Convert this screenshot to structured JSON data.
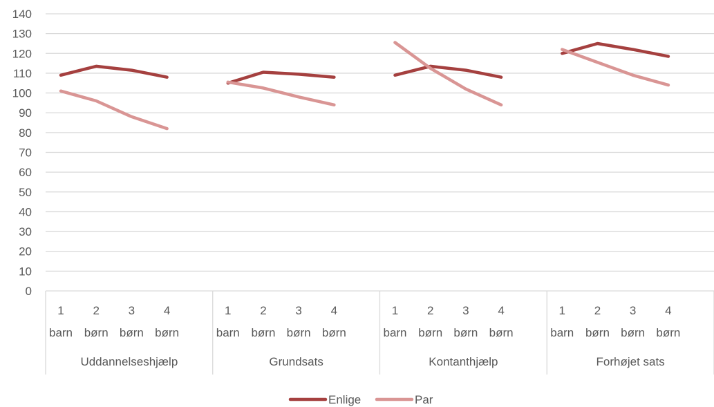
{
  "chart_data": {
    "type": "line",
    "title": "",
    "xlabel": "",
    "ylabel": "",
    "ylim": [
      0,
      140
    ],
    "yticks": [
      0,
      10,
      20,
      30,
      40,
      50,
      60,
      70,
      80,
      90,
      100,
      110,
      120,
      130,
      140
    ],
    "grid": true,
    "legend_position": "bottom",
    "groups": [
      {
        "name": "Uddannelseshjælp",
        "categories": [
          {
            "line1": "1",
            "line2": "barn"
          },
          {
            "line1": "2",
            "line2": "børn"
          },
          {
            "line1": "3",
            "line2": "børn"
          },
          {
            "line1": "4",
            "line2": "børn"
          }
        ]
      },
      {
        "name": "Grundsats",
        "categories": [
          {
            "line1": "1",
            "line2": "barn"
          },
          {
            "line1": "2",
            "line2": "børn"
          },
          {
            "line1": "3",
            "line2": "børn"
          },
          {
            "line1": "4",
            "line2": "børn"
          }
        ]
      },
      {
        "name": "Kontanthjælp",
        "categories": [
          {
            "line1": "1",
            "line2": "barn"
          },
          {
            "line1": "2",
            "line2": "børn"
          },
          {
            "line1": "3",
            "line2": "børn"
          },
          {
            "line1": "4",
            "line2": "børn"
          }
        ]
      },
      {
        "name": "Forhøjet sats",
        "categories": [
          {
            "line1": "1",
            "line2": "barn"
          },
          {
            "line1": "2",
            "line2": "børn"
          },
          {
            "line1": "3",
            "line2": "børn"
          },
          {
            "line1": "4",
            "line2": "børn"
          }
        ]
      }
    ],
    "series": [
      {
        "name": "Enlige",
        "color": "#a5403f",
        "values": [
          [
            109,
            113.5,
            111.5,
            108
          ],
          [
            105,
            110.5,
            109.5,
            108
          ],
          [
            109,
            113.5,
            111.5,
            108
          ],
          [
            120,
            125,
            122,
            118.5
          ]
        ]
      },
      {
        "name": "Par",
        "color": "#d99594",
        "values": [
          [
            101,
            96,
            88,
            82
          ],
          [
            105.5,
            102.5,
            98,
            94
          ],
          [
            125.5,
            112.5,
            102,
            94
          ],
          [
            122,
            115.5,
            109,
            104
          ]
        ]
      }
    ]
  }
}
